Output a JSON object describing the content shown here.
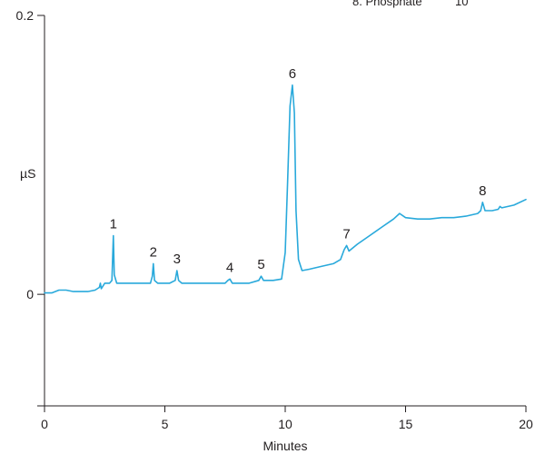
{
  "chart_data": {
    "type": "line",
    "title": "",
    "xlabel": "Minutes",
    "ylabel": "µS",
    "xlim": [
      0,
      20
    ],
    "ylim": [
      -0.08,
      0.2
    ],
    "x_ticks": [
      0,
      5,
      10,
      15,
      20
    ],
    "y_ticks": [
      {
        "value": 0.2,
        "label": "0.2"
      },
      {
        "value": 0,
        "label": "0"
      },
      {
        "value": -0.08,
        "label": ""
      }
    ],
    "grid": false,
    "series_color": "#29a9db",
    "series": [
      {
        "values": [
          [
            0.0,
            0.001
          ],
          [
            0.3,
            0.001
          ],
          [
            0.6,
            0.003
          ],
          [
            0.9,
            0.003
          ],
          [
            1.2,
            0.002
          ],
          [
            1.5,
            0.002
          ],
          [
            1.8,
            0.002
          ],
          [
            2.1,
            0.003
          ],
          [
            2.28,
            0.005
          ],
          [
            2.32,
            0.008
          ],
          [
            2.36,
            0.004
          ],
          [
            2.5,
            0.008
          ],
          [
            2.7,
            0.008
          ],
          [
            2.8,
            0.01
          ],
          [
            2.86,
            0.042
          ],
          [
            2.9,
            0.014
          ],
          [
            3.0,
            0.008
          ],
          [
            3.5,
            0.008
          ],
          [
            4.0,
            0.008
          ],
          [
            4.4,
            0.008
          ],
          [
            4.48,
            0.013
          ],
          [
            4.52,
            0.022
          ],
          [
            4.57,
            0.01
          ],
          [
            4.7,
            0.008
          ],
          [
            5.2,
            0.008
          ],
          [
            5.43,
            0.01
          ],
          [
            5.5,
            0.017
          ],
          [
            5.57,
            0.01
          ],
          [
            5.7,
            0.008
          ],
          [
            6.5,
            0.008
          ],
          [
            7.5,
            0.008
          ],
          [
            7.62,
            0.01
          ],
          [
            7.7,
            0.011
          ],
          [
            7.8,
            0.008
          ],
          [
            8.5,
            0.008
          ],
          [
            8.9,
            0.01
          ],
          [
            9.0,
            0.013
          ],
          [
            9.1,
            0.01
          ],
          [
            9.5,
            0.01
          ],
          [
            9.85,
            0.011
          ],
          [
            10.0,
            0.03
          ],
          [
            10.1,
            0.08
          ],
          [
            10.2,
            0.135
          ],
          [
            10.3,
            0.15
          ],
          [
            10.38,
            0.13
          ],
          [
            10.45,
            0.06
          ],
          [
            10.55,
            0.025
          ],
          [
            10.7,
            0.017
          ],
          [
            11.0,
            0.018
          ],
          [
            11.5,
            0.02
          ],
          [
            12.0,
            0.022
          ],
          [
            12.3,
            0.025
          ],
          [
            12.45,
            0.032
          ],
          [
            12.55,
            0.035
          ],
          [
            12.65,
            0.031
          ],
          [
            13.0,
            0.036
          ],
          [
            13.5,
            0.042
          ],
          [
            14.0,
            0.048
          ],
          [
            14.5,
            0.054
          ],
          [
            14.75,
            0.058
          ],
          [
            15.0,
            0.055
          ],
          [
            15.5,
            0.054
          ],
          [
            16.0,
            0.054
          ],
          [
            16.5,
            0.055
          ],
          [
            17.0,
            0.055
          ],
          [
            17.5,
            0.056
          ],
          [
            18.0,
            0.058
          ],
          [
            18.12,
            0.06
          ],
          [
            18.2,
            0.066
          ],
          [
            18.3,
            0.06
          ],
          [
            18.6,
            0.06
          ],
          [
            18.85,
            0.061
          ],
          [
            18.92,
            0.063
          ],
          [
            19.0,
            0.062
          ],
          [
            19.5,
            0.064
          ],
          [
            20.0,
            0.068
          ]
        ]
      }
    ],
    "peak_labels": [
      {
        "label": "1",
        "x": 2.86,
        "y": 0.042
      },
      {
        "label": "2",
        "x": 4.52,
        "y": 0.022
      },
      {
        "label": "3",
        "x": 5.5,
        "y": 0.017
      },
      {
        "label": "4",
        "x": 7.7,
        "y": 0.011
      },
      {
        "label": "5",
        "x": 9.0,
        "y": 0.013
      },
      {
        "label": "6",
        "x": 10.3,
        "y": 0.15
      },
      {
        "label": "7",
        "x": 12.55,
        "y": 0.035
      },
      {
        "label": "8",
        "x": 18.2,
        "y": 0.066
      }
    ],
    "legend_partial": {
      "name": "8. Phosphate",
      "value": "10"
    }
  }
}
